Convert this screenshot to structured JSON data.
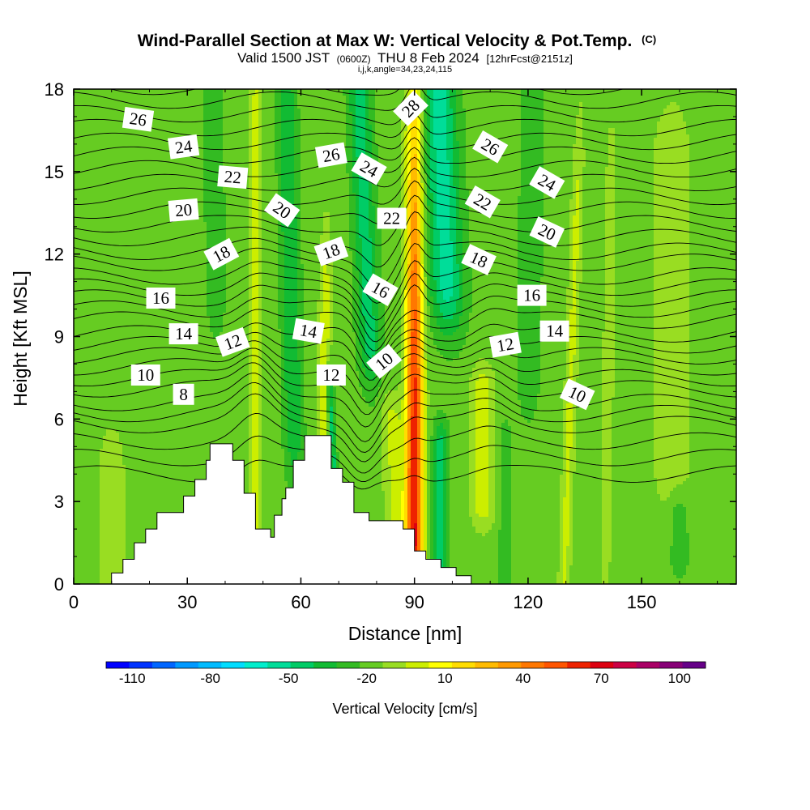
{
  "chart_data": {
    "type": "heatmap",
    "title": "Wind-Parallel Section at Max W: Vertical Velocity & Pot.Temp.",
    "title_mark": "(C)",
    "subtitle_parts": [
      "Valid 1500 JST",
      "(0600Z)",
      "THU 8 Feb 2024",
      "[12hrFcst@2151z]"
    ],
    "subtitle2": "i,j,k,angle=34,23,24,115",
    "xlabel": "Distance [nm]",
    "ylabel": "Height [Kft MSL]",
    "xlim": [
      0,
      175
    ],
    "ylim": [
      0,
      18
    ],
    "xticks": [
      "0",
      "30",
      "60",
      "90",
      "120",
      "150"
    ],
    "yticks": [
      "0",
      "3",
      "6",
      "9",
      "12",
      "15",
      "18"
    ],
    "colorbar": {
      "label": "Vertical Velocity [cm/s]",
      "range": [
        -120,
        110
      ],
      "tick_labels": [
        "-110",
        "-80",
        "-50",
        "-20",
        "10",
        "40",
        "70",
        "100"
      ],
      "bin_width": 10,
      "colors": [
        "#0000ff",
        "#0033ff",
        "#0066ff",
        "#0099ff",
        "#00bbff",
        "#00ddff",
        "#00eecc",
        "#00dd99",
        "#00cc66",
        "#11bb33",
        "#33bb22",
        "#66cc22",
        "#99dd22",
        "#ccee00",
        "#ffff00",
        "#ffdd00",
        "#ffbb00",
        "#ff9900",
        "#ff7700",
        "#ff5500",
        "#ee2200",
        "#dd0011",
        "#cc0044",
        "#aa0066",
        "#880077",
        "#660088"
      ]
    },
    "isentrope_labels": [
      {
        "x": 17,
        "z": 16.9,
        "v": "26",
        "a": 8
      },
      {
        "x": 29,
        "z": 15.9,
        "v": "24",
        "a": -8
      },
      {
        "x": 42,
        "z": 14.8,
        "v": "22",
        "a": 5
      },
      {
        "x": 29,
        "z": 13.6,
        "v": "20",
        "a": -5
      },
      {
        "x": 55,
        "z": 13.6,
        "v": "20",
        "a": 35
      },
      {
        "x": 39,
        "z": 12.0,
        "v": "18",
        "a": -28
      },
      {
        "x": 68,
        "z": 12.1,
        "v": "18",
        "a": -20
      },
      {
        "x": 23,
        "z": 10.4,
        "v": "16",
        "a": 0
      },
      {
        "x": 29,
        "z": 9.1,
        "v": "14",
        "a": 0
      },
      {
        "x": 42,
        "z": 8.8,
        "v": "12",
        "a": -20
      },
      {
        "x": 19,
        "z": 7.6,
        "v": "10",
        "a": 0
      },
      {
        "x": 29,
        "z": 6.9,
        "v": "8",
        "a": 0
      },
      {
        "x": 68,
        "z": 15.6,
        "v": "26",
        "a": -10
      },
      {
        "x": 78,
        "z": 15.1,
        "v": "24",
        "a": 30
      },
      {
        "x": 84,
        "z": 13.3,
        "v": "22",
        "a": 0
      },
      {
        "x": 81,
        "z": 10.7,
        "v": "16",
        "a": 30
      },
      {
        "x": 62,
        "z": 9.2,
        "v": "14",
        "a": 10
      },
      {
        "x": 68,
        "z": 7.6,
        "v": "12",
        "a": 0
      },
      {
        "x": 82,
        "z": 8.1,
        "v": "10",
        "a": -40
      },
      {
        "x": 89,
        "z": 17.3,
        "v": "28",
        "a": -45
      },
      {
        "x": 110,
        "z": 15.9,
        "v": "26",
        "a": 30
      },
      {
        "x": 108,
        "z": 13.9,
        "v": "22",
        "a": 30
      },
      {
        "x": 107,
        "z": 11.8,
        "v": "18",
        "a": 25
      },
      {
        "x": 125,
        "z": 14.6,
        "v": "24",
        "a": 30
      },
      {
        "x": 125,
        "z": 12.8,
        "v": "20",
        "a": 25
      },
      {
        "x": 121,
        "z": 10.5,
        "v": "16",
        "a": 0
      },
      {
        "x": 114,
        "z": 8.7,
        "v": "12",
        "a": -10
      },
      {
        "x": 127,
        "z": 9.2,
        "v": "14",
        "a": 0
      },
      {
        "x": 133,
        "z": 6.9,
        "v": "10",
        "a": 25
      }
    ]
  }
}
